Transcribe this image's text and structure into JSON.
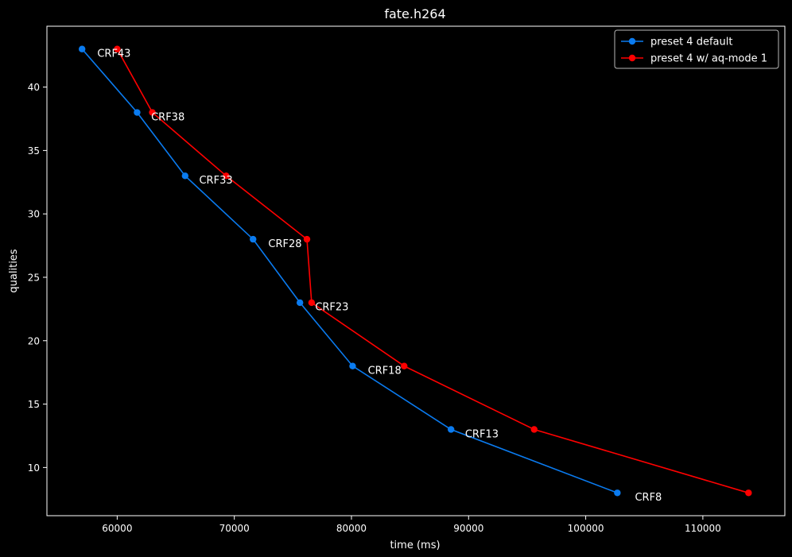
{
  "chart_data": {
    "type": "line",
    "title": "fate.h264",
    "xlabel": "time (ms)",
    "ylabel": "qualities",
    "xlim": [
      54000,
      117000
    ],
    "ylim": [
      6.2,
      44.8
    ],
    "xticks": [
      60000,
      70000,
      80000,
      90000,
      100000,
      110000
    ],
    "yticks": [
      10,
      15,
      20,
      25,
      30,
      35,
      40
    ],
    "grid": false,
    "legend_position": "top-right",
    "background": "#000000",
    "series": [
      {
        "name": "preset 4 default",
        "color": "#0a7bf0",
        "x": [
          57000,
          61700,
          65800,
          71600,
          75600,
          80100,
          88500,
          102700
        ],
        "y": [
          43,
          38,
          33,
          28,
          23,
          18,
          13,
          8
        ]
      },
      {
        "name": "preset 4 w/ aq-mode 1",
        "color": "#ff0000",
        "x": [
          60000,
          63000,
          69300,
          76200,
          76600,
          84500,
          95600,
          113900
        ],
        "y": [
          43,
          38,
          33,
          28,
          23,
          18,
          13,
          8
        ]
      }
    ],
    "annotations": [
      {
        "text": "CRF43",
        "x": 58300,
        "y": 42.7
      },
      {
        "text": "CRF38",
        "x": 62900,
        "y": 37.7
      },
      {
        "text": "CRF33",
        "x": 67000,
        "y": 32.7
      },
      {
        "text": "CRF28",
        "x": 72900,
        "y": 27.7
      },
      {
        "text": "CRF23",
        "x": 76900,
        "y": 22.7
      },
      {
        "text": "CRF18",
        "x": 81400,
        "y": 17.7
      },
      {
        "text": "CRF13",
        "x": 89700,
        "y": 12.7
      },
      {
        "text": "CRF8",
        "x": 104200,
        "y": 7.7
      }
    ]
  }
}
